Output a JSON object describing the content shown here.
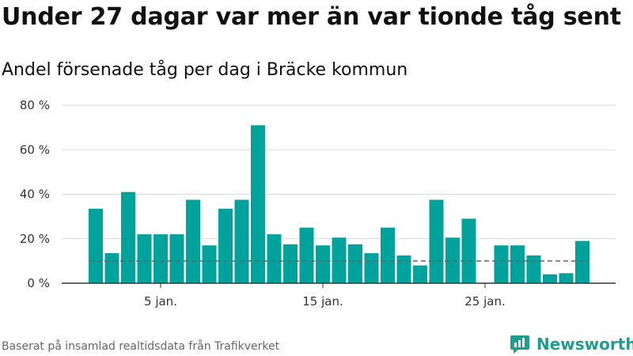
{
  "title": "Under 27 dagar var mer än var tionde tåg sent",
  "subtitle": "Andel försenade tåg per dag i Bräcke kommun",
  "footer": "Baserat på insamlad realtidsdata från Trafikverket",
  "brand": {
    "name": "Newsworthy",
    "icon": "newsworthy-logo-icon"
  },
  "colors": {
    "bar": "#00a39b",
    "grid": "#d9d9d9",
    "axis": "#333333",
    "reference": "#666666",
    "brand": "#1f9e8e"
  },
  "chart_data": {
    "type": "bar",
    "x": [
      "1 jan.",
      "2 jan.",
      "3 jan.",
      "4 jan.",
      "5 jan.",
      "6 jan.",
      "7 jan.",
      "8 jan.",
      "9 jan.",
      "10 jan.",
      "11 jan.",
      "12 jan.",
      "13 jan.",
      "14 jan.",
      "15 jan.",
      "16 jan.",
      "17 jan.",
      "18 jan.",
      "19 jan.",
      "20 jan.",
      "21 jan.",
      "22 jan.",
      "23 jan.",
      "24 jan.",
      "25 jan.",
      "26 jan.",
      "27 jan.",
      "28 jan.",
      "29 jan.",
      "30 jan.",
      "31 jan."
    ],
    "values": [
      33.5,
      13.5,
      41,
      22,
      22,
      22,
      37.5,
      17,
      33.5,
      37.5,
      71,
      22,
      17.5,
      25,
      17,
      20.5,
      17.5,
      13.5,
      25,
      12.5,
      8,
      37.5,
      20.5,
      29,
      null,
      17,
      17,
      12.5,
      4,
      4.5,
      19
    ],
    "x_ticks": [
      "5 jan.",
      "15 jan.",
      "25 jan."
    ],
    "y_ticks": [
      "0 %",
      "20 %",
      "40 %",
      "60 %",
      "80 %"
    ],
    "ylim": [
      0,
      80
    ],
    "reference_line": 10,
    "grid": true
  }
}
